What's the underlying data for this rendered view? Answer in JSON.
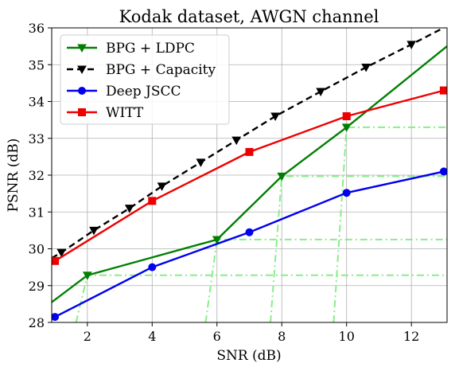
{
  "chart_data": {
    "type": "line",
    "title": "Kodak dataset, AWGN channel",
    "xlabel": "SNR (dB)",
    "ylabel": "PSNR (dB)",
    "xlim": [
      0.9,
      13.1
    ],
    "ylim": [
      28,
      36
    ],
    "xticks": [
      2,
      4,
      6,
      8,
      10,
      12
    ],
    "yticks": [
      28,
      29,
      30,
      31,
      32,
      33,
      34,
      35,
      36
    ],
    "grid": true,
    "legend_position": "top-left",
    "series": [
      {
        "name": "BPG + LDPC",
        "color": "#008000",
        "dash": "solid",
        "marker": "triangle-down",
        "markers_x": [
          2,
          6,
          8,
          10,
          13
        ],
        "x": [
          0.9,
          2,
          6,
          8,
          10,
          13.1
        ],
        "y": [
          28.55,
          29.28,
          30.25,
          31.97,
          33.3,
          35.5
        ]
      },
      {
        "name": "BPG + Capacity",
        "color": "#000000",
        "dash": "dashed",
        "marker": "triangle-down",
        "markers_x": [
          1.2,
          2.2,
          3.3,
          4.3,
          5.5,
          6.6,
          7.8,
          9.2,
          10.6,
          12
        ],
        "x": [
          0.9,
          1.2,
          2.2,
          3.3,
          4.3,
          5.5,
          6.6,
          7.8,
          9.2,
          10.6,
          12,
          13.1
        ],
        "y": [
          29.75,
          29.9,
          30.5,
          31.1,
          31.7,
          32.35,
          32.95,
          33.6,
          34.27,
          34.93,
          35.55,
          36.05
        ]
      },
      {
        "name": "Deep JSCC",
        "color": "#0000ee",
        "dash": "solid",
        "marker": "circle",
        "markers_x": [
          1,
          4,
          7,
          10,
          13
        ],
        "x": [
          1,
          4,
          7,
          10,
          13
        ],
        "y": [
          28.15,
          29.5,
          30.45,
          31.52,
          32.1
        ]
      },
      {
        "name": "WITT",
        "color": "#ee0000",
        "dash": "solid",
        "marker": "square",
        "markers_x": [
          1,
          4,
          7,
          10,
          13
        ],
        "x": [
          1,
          4,
          7,
          10,
          13
        ],
        "y": [
          29.67,
          31.3,
          32.63,
          33.6,
          34.3
        ]
      }
    ],
    "reference_lines": {
      "color": "#88ee88",
      "dash": "dash-dot",
      "curves": [
        {
          "x": [
            1.65,
            2.0,
            13.1
          ],
          "y": [
            28.0,
            29.28,
            29.28
          ]
        },
        {
          "x": [
            5.65,
            6.0,
            13.1
          ],
          "y": [
            28.0,
            30.25,
            30.25
          ]
        },
        {
          "x": [
            7.65,
            8.0,
            13.1
          ],
          "y": [
            28.0,
            31.97,
            31.97
          ]
        },
        {
          "x": [
            9.6,
            10.0,
            13.1
          ],
          "y": [
            28.0,
            33.3,
            33.3
          ]
        }
      ]
    }
  }
}
